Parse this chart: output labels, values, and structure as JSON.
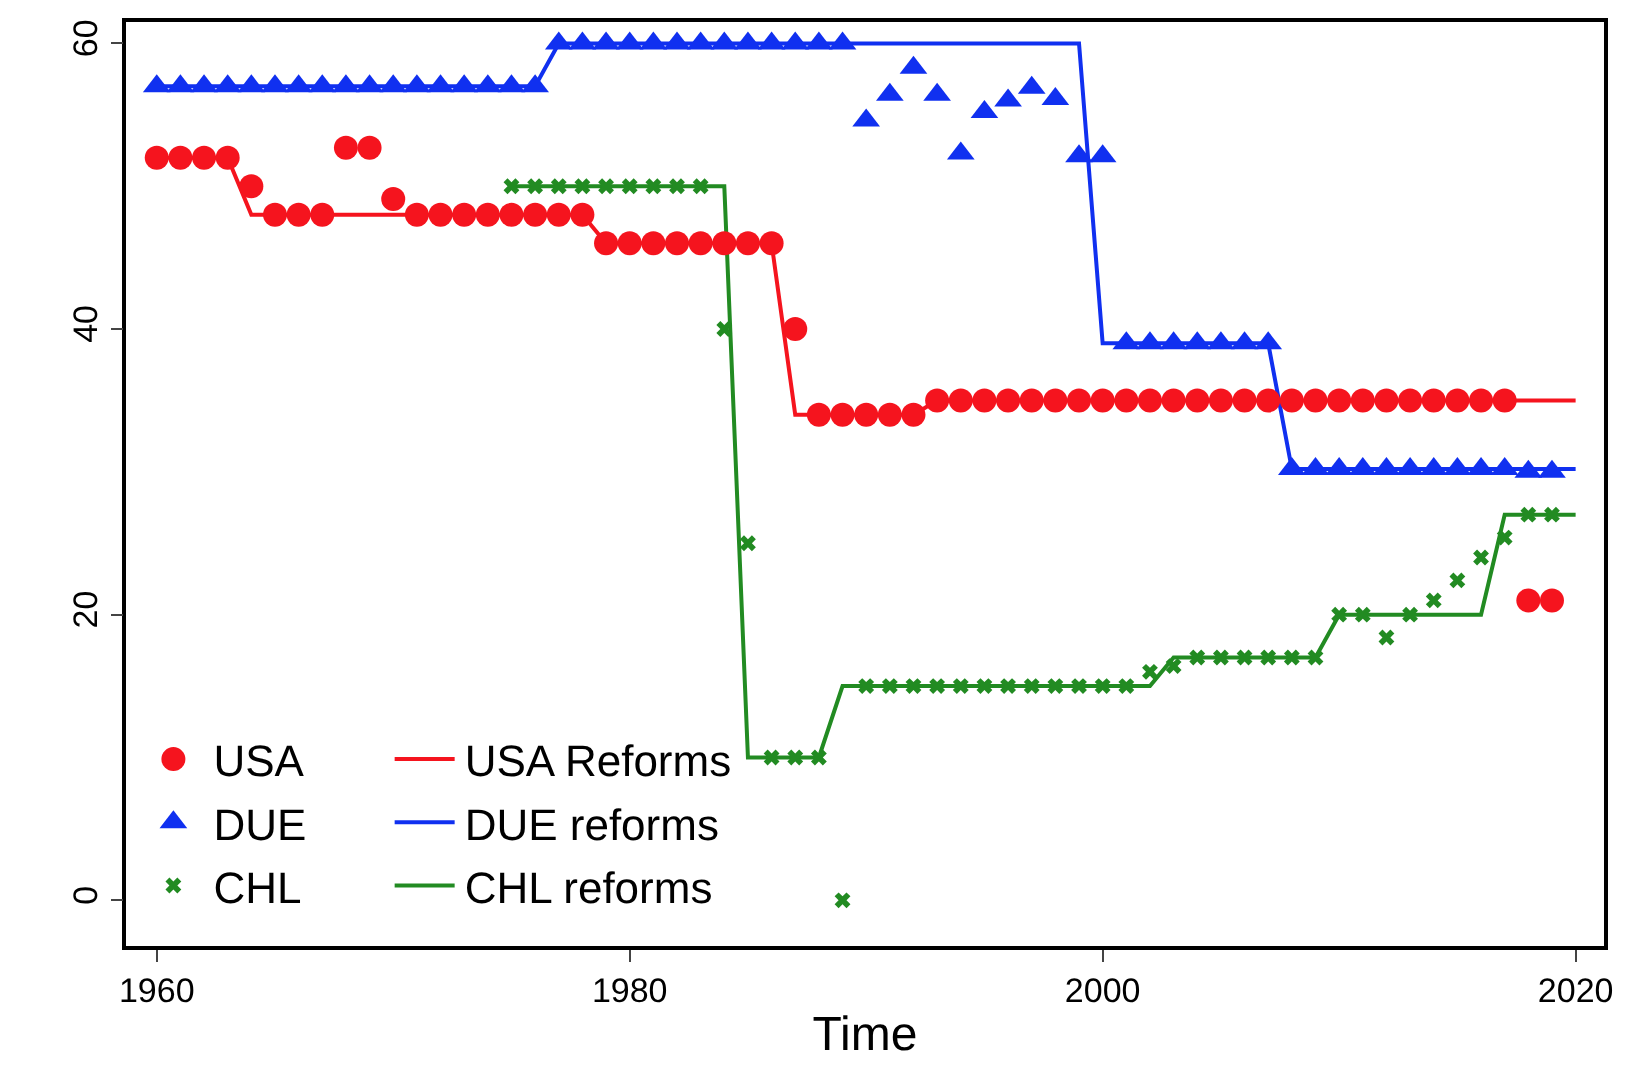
{
  "chart_data": {
    "type": "scatter",
    "xlabel": "Time",
    "xlim": [
      1958.7,
      2021.2
    ],
    "xticks": [
      1960,
      1980,
      2000,
      2020
    ],
    "ylim": [
      -3.2,
      61.5
    ],
    "yticks": [
      0,
      20,
      40,
      60
    ],
    "legend": "bottom left",
    "series": [
      {
        "name": "USA",
        "marker": "circle",
        "color": "#f5141e",
        "x": [
          1960,
          1961,
          1962,
          1963,
          1964,
          1965,
          1966,
          1967,
          1968,
          1969,
          1970,
          1971,
          1972,
          1973,
          1974,
          1975,
          1976,
          1977,
          1978,
          1979,
          1980,
          1981,
          1982,
          1983,
          1984,
          1985,
          1986,
          1987,
          1988,
          1989,
          1990,
          1991,
          1992,
          1993,
          1994,
          1995,
          1996,
          1997,
          1998,
          1999,
          2000,
          2001,
          2002,
          2003,
          2004,
          2005,
          2006,
          2007,
          2008,
          2009,
          2010,
          2011,
          2012,
          2013,
          2014,
          2015,
          2016,
          2017,
          2018,
          2019
        ],
        "values": [
          52,
          52,
          52,
          52,
          50,
          48,
          48,
          48,
          52.7,
          52.7,
          49.1,
          48,
          48,
          48,
          48,
          48,
          48,
          48,
          48,
          46,
          46,
          46,
          46,
          46,
          46,
          46,
          46,
          40,
          34,
          34,
          34,
          34,
          34,
          35,
          35,
          35,
          35,
          35,
          35,
          35,
          35,
          35,
          35,
          35,
          35,
          35,
          35,
          35,
          35,
          35,
          35,
          35,
          35,
          35,
          35,
          35,
          35,
          35,
          21,
          21
        ]
      },
      {
        "name": "DUE",
        "marker": "triangle",
        "color": "#1030f0",
        "x": [
          1960,
          1961,
          1962,
          1963,
          1964,
          1965,
          1966,
          1967,
          1968,
          1969,
          1970,
          1971,
          1972,
          1973,
          1974,
          1975,
          1976,
          1977,
          1978,
          1979,
          1980,
          1981,
          1982,
          1983,
          1984,
          1985,
          1986,
          1987,
          1988,
          1989,
          1990,
          1991,
          1992,
          1993,
          1994,
          1995,
          1996,
          1997,
          1998,
          1999,
          2000,
          2001,
          2002,
          2003,
          2004,
          2005,
          2006,
          2007,
          2008,
          2009,
          2010,
          2011,
          2012,
          2013,
          2014,
          2015,
          2016,
          2017,
          2018,
          2019
        ],
        "values": [
          57,
          57,
          57,
          57,
          57,
          57,
          57,
          57,
          57,
          57,
          57,
          57,
          57,
          57,
          57,
          57,
          57,
          60,
          60,
          60,
          60,
          60,
          60,
          60,
          60,
          60,
          60,
          60,
          60,
          60,
          54.6,
          56.4,
          58.3,
          56.4,
          52.3,
          55.2,
          56,
          56.9,
          56.1,
          52.1,
          52.1,
          39,
          39,
          39,
          39,
          39,
          39,
          39,
          30.2,
          30.2,
          30.2,
          30.2,
          30.2,
          30.2,
          30.2,
          30.2,
          30.2,
          30.2,
          30,
          30
        ]
      },
      {
        "name": "CHL",
        "marker": "cross",
        "color": "#228b22",
        "x": [
          1975,
          1976,
          1977,
          1978,
          1979,
          1980,
          1981,
          1982,
          1983,
          1984,
          1985,
          1986,
          1987,
          1988,
          1989,
          1990,
          1991,
          1992,
          1993,
          1994,
          1995,
          1996,
          1997,
          1998,
          1999,
          2000,
          2001,
          2002,
          2003,
          2004,
          2005,
          2006,
          2007,
          2008,
          2009,
          2010,
          2011,
          2012,
          2013,
          2014,
          2015,
          2016,
          2017,
          2018,
          2019
        ],
        "values": [
          50,
          50,
          50,
          50,
          50,
          50,
          50,
          50,
          50,
          40,
          25,
          10,
          10,
          10,
          0,
          15,
          15,
          15,
          15,
          15,
          15,
          15,
          15,
          15,
          15,
          15,
          15,
          16,
          16.4,
          17,
          17,
          17,
          17,
          17,
          17,
          20,
          20,
          18.4,
          20,
          21,
          22.4,
          24,
          25.4,
          27,
          27
        ]
      },
      {
        "name": "USA Reforms",
        "type": "line",
        "line_style": "solid",
        "color": "#f5141e",
        "x": [
          1960,
          1963,
          1964,
          1978,
          1979,
          1986,
          1987,
          1992,
          1993,
          2020
        ],
        "values": [
          52,
          52,
          48,
          48,
          46,
          46,
          34,
          34,
          35,
          35
        ]
      },
      {
        "name": "DUE reforms",
        "type": "line",
        "line_style": "solid",
        "color": "#1030f0",
        "x": [
          1960,
          1976,
          1977,
          1999,
          2000,
          2007,
          2008,
          2020
        ],
        "values": [
          57,
          57,
          60,
          60,
          39,
          39,
          30.2,
          30.2
        ]
      },
      {
        "name": "CHL reforms",
        "type": "line",
        "line_style": "solid",
        "color": "#228b22",
        "x": [
          1975,
          1984,
          1985,
          1988,
          1989,
          2002,
          2003,
          2009,
          2010,
          2016,
          2017,
          2020
        ],
        "values": [
          50,
          50,
          10,
          10,
          15,
          15,
          17,
          17,
          20,
          20,
          27,
          27
        ]
      }
    ]
  }
}
